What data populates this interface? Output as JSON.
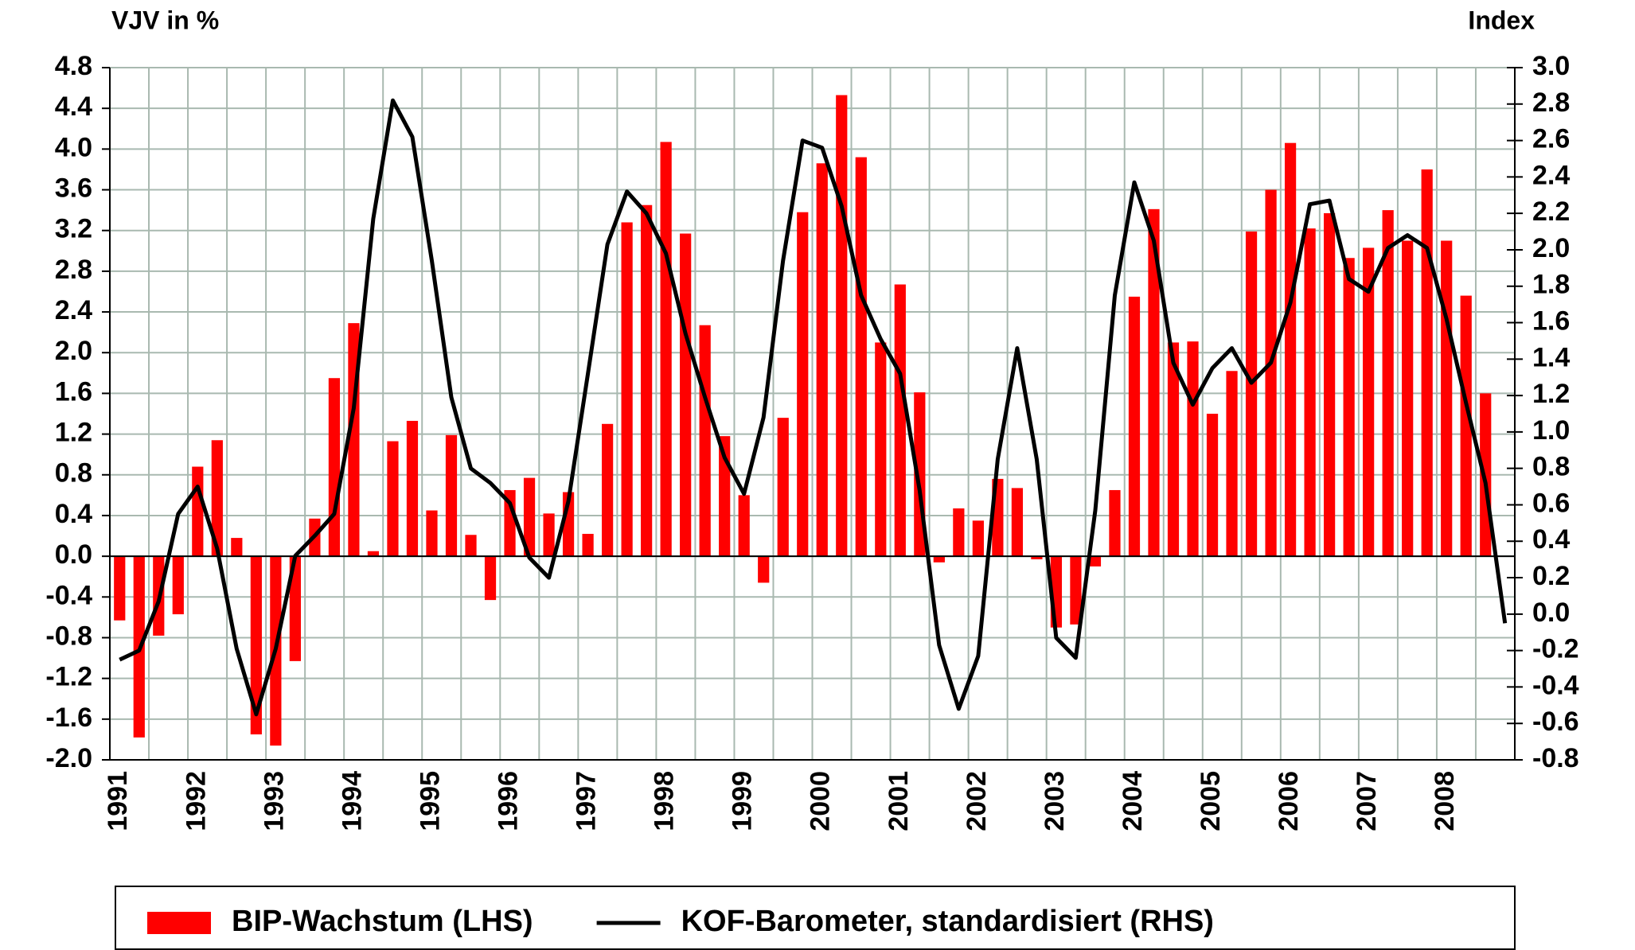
{
  "chart_data": {
    "type": "bar_line",
    "y_label": "VJV in %",
    "y2_label": "Index",
    "categories": [
      "1991",
      null,
      null,
      null,
      "1992",
      null,
      null,
      null,
      "1993",
      null,
      null,
      null,
      "1994",
      null,
      null,
      null,
      "1995",
      null,
      null,
      null,
      "1996",
      null,
      null,
      null,
      "1997",
      null,
      null,
      null,
      "1998",
      null,
      null,
      null,
      "1999",
      null,
      null,
      null,
      "2000",
      null,
      null,
      null,
      "2001",
      null,
      null,
      null,
      "2002",
      null,
      null,
      null,
      "2003",
      null,
      null,
      null,
      "2004",
      null,
      null,
      null,
      "2005",
      null,
      null,
      null,
      "2006",
      null,
      null,
      null,
      "2007",
      null,
      null,
      null,
      "2008",
      null,
      null,
      null
    ],
    "series": [
      {
        "name": "BIP-Wachstum (LHS)",
        "type": "bar",
        "color": "#ff0000",
        "axis": "y",
        "values": [
          -0.63,
          -1.78,
          -0.78,
          -0.57,
          0.88,
          1.14,
          0.18,
          -1.75,
          -1.86,
          -1.03,
          0.37,
          1.75,
          2.29,
          0.05,
          1.13,
          1.33,
          0.45,
          1.19,
          0.21,
          -0.43,
          0.65,
          0.77,
          0.42,
          0.63,
          0.22,
          1.3,
          3.28,
          3.45,
          4.07,
          3.17,
          2.27,
          1.18,
          0.6,
          -0.26,
          1.36,
          3.38,
          3.86,
          4.53,
          3.92,
          2.1,
          2.67,
          1.61,
          -0.06,
          0.47,
          0.35,
          0.76,
          0.67,
          -0.03,
          -0.7,
          -0.67,
          -0.1,
          0.65,
          2.55,
          3.41,
          2.1,
          2.11,
          1.4,
          1.82,
          3.19,
          3.6,
          4.06,
          3.22,
          3.37,
          2.93,
          3.03,
          3.4,
          3.1,
          3.8,
          3.1,
          2.56,
          1.6,
          null
        ]
      },
      {
        "name": "KOF-Barometer, standardisiert (RHS)",
        "type": "line",
        "color": "#000000",
        "axis": "y2",
        "values": [
          -0.25,
          -0.2,
          0.07,
          0.55,
          0.7,
          0.36,
          -0.19,
          -0.55,
          -0.19,
          0.32,
          0.43,
          0.55,
          1.13,
          2.17,
          2.82,
          2.62,
          1.94,
          1.19,
          0.8,
          0.72,
          0.61,
          0.31,
          0.2,
          0.62,
          1.32,
          2.03,
          2.32,
          2.2,
          1.98,
          1.54,
          1.19,
          0.86,
          0.66,
          1.08,
          1.94,
          2.6,
          2.56,
          2.24,
          1.75,
          1.51,
          1.32,
          0.68,
          -0.17,
          -0.52,
          -0.23,
          0.85,
          1.46,
          0.85,
          -0.13,
          -0.24,
          0.57,
          1.75,
          2.37,
          2.05,
          1.38,
          1.15,
          1.35,
          1.46,
          1.27,
          1.38,
          1.71,
          2.25,
          2.27,
          1.84,
          1.77,
          2.01,
          2.08,
          2.01,
          1.62,
          1.16,
          0.72,
          -0.05
        ]
      }
    ],
    "ylim": [
      -2.0,
      4.8
    ],
    "yticks": [
      4.8,
      4.4,
      {
        "value": 4,
        "label": "4.0"
      },
      3.6,
      3.2,
      2.8,
      2.4,
      {
        "value": 2,
        "label": "2.0"
      },
      1.6,
      1.2,
      0.8,
      0.4,
      {
        "value": 0,
        "label": "0.0"
      },
      -0.4,
      -0.8,
      -1.2,
      -1.6,
      {
        "value": -2,
        "label": "-2.0"
      }
    ],
    "y2lim": [
      -0.8,
      3.0
    ],
    "y2ticks": [
      {
        "value": 3,
        "label": "3.0"
      },
      2.8,
      2.6,
      2.4,
      2.2,
      {
        "value": 2,
        "label": "2.0"
      },
      1.8,
      1.6,
      1.4,
      1.2,
      {
        "value": 1,
        "label": "1.0"
      },
      0.8,
      0.6,
      0.4,
      0.2,
      {
        "value": 0,
        "label": "0.0"
      },
      -0.2,
      -0.4,
      -0.6,
      -0.8
    ],
    "grid": true,
    "legend": "bottom"
  }
}
